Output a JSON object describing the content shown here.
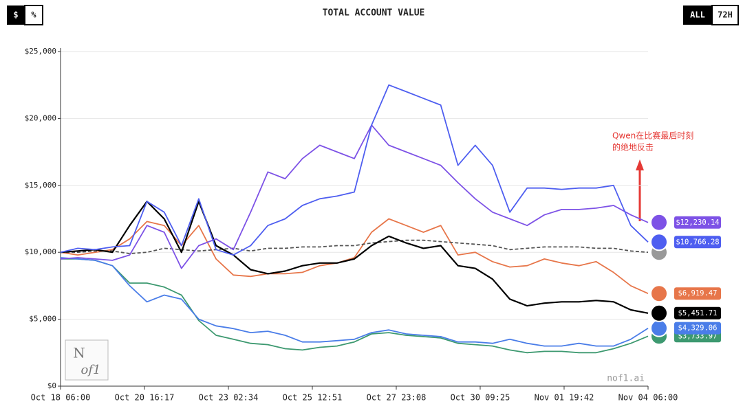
{
  "chart_data": {
    "type": "line",
    "title": "TOTAL ACCOUNT VALUE",
    "toggles": {
      "unit": [
        "$",
        "%"
      ],
      "range": [
        "ALL",
        "72H"
      ]
    },
    "annotation": [
      "Qwen在比赛最后时刻",
      "的绝地反击"
    ],
    "watermark": "nof1.ai",
    "logo": [
      "N",
      "of1"
    ],
    "x": [
      "Oct 18 06:00",
      "Oct 18 18:00",
      "Oct 19 06:00",
      "Oct 19 18:00",
      "Oct 20 06:00",
      "Oct 20 18:00",
      "Oct 21 06:00",
      "Oct 21 18:00",
      "Oct 22 06:00",
      "Oct 22 18:00",
      "Oct 23 06:00",
      "Oct 23 18:00",
      "Oct 24 06:00",
      "Oct 24 18:00",
      "Oct 25 06:00",
      "Oct 25 18:00",
      "Oct 26 06:00",
      "Oct 26 18:00",
      "Oct 27 06:00",
      "Oct 27 18:00",
      "Oct 28 06:00",
      "Oct 28 18:00",
      "Oct 29 06:00",
      "Oct 29 18:00",
      "Oct 30 06:00",
      "Oct 30 18:00",
      "Oct 31 06:00",
      "Oct 31 18:00",
      "Nov 01 06:00",
      "Nov 01 18:00",
      "Nov 02 06:00",
      "Nov 02 18:00",
      "Nov 03 06:00",
      "Nov 03 18:00",
      "Nov 04 06:00"
    ],
    "xlim": [
      "Oct 18 06:00",
      "Nov 04 06:00"
    ],
    "xticks": [
      "Oct 18 06:00",
      "Oct 20 16:17",
      "Oct 23 02:34",
      "Oct 25 12:51",
      "Oct 27 23:08",
      "Oct 30 09:25",
      "Nov 01 19:42",
      "Nov 04 06:00"
    ],
    "ylim": [
      0,
      25000
    ],
    "yticks": [
      {
        "value": 0,
        "label": "$0"
      },
      {
        "value": 5000,
        "label": "$5,000"
      },
      {
        "value": 10000,
        "label": "$10,000"
      },
      {
        "value": 15000,
        "label": "$15,000"
      },
      {
        "value": 20000,
        "label": "$20,000"
      },
      {
        "value": 25000,
        "label": "$25,000"
      }
    ],
    "grid": true,
    "series": [
      {
        "color": "#3d9970",
        "dashed": false,
        "values": [
          9500,
          9500,
          9400,
          9000,
          7700,
          7700,
          7400,
          6800,
          4900,
          3800,
          3500,
          3200,
          3100,
          2800,
          2700,
          2900,
          3000,
          3300,
          3900,
          4000,
          3800,
          3700,
          3600,
          3200,
          3100,
          3000,
          2700,
          2500,
          2600,
          2600,
          2500,
          2500,
          2800,
          3200,
          3733.97
        ],
        "value_labels": [
          null,
          null,
          null,
          null,
          null,
          null,
          null,
          null,
          null,
          null,
          null,
          null,
          null,
          null,
          null,
          null,
          null,
          null,
          null,
          null,
          null,
          null,
          null,
          null,
          null,
          null,
          null,
          null,
          null,
          null,
          null,
          null,
          null,
          null,
          "$3,733.97"
        ]
      },
      {
        "color": "#4a7de8",
        "dashed": false,
        "values": [
          9600,
          9500,
          9400,
          9000,
          7500,
          6300,
          6800,
          6500,
          5000,
          4500,
          4300,
          4000,
          4100,
          3800,
          3300,
          3300,
          3400,
          3500,
          4000,
          4200,
          3900,
          3800,
          3700,
          3300,
          3300,
          3200,
          3500,
          3200,
          3000,
          3000,
          3200,
          3000,
          3000,
          3500,
          4329.06
        ],
        "value_labels": [
          null,
          null,
          null,
          null,
          null,
          null,
          null,
          null,
          null,
          null,
          null,
          null,
          null,
          null,
          null,
          null,
          null,
          null,
          null,
          null,
          null,
          null,
          null,
          null,
          null,
          null,
          null,
          null,
          null,
          null,
          null,
          null,
          null,
          null,
          "$4,329.06"
        ]
      },
      {
        "color": "#e7764a",
        "dashed": false,
        "values": [
          10000,
          9800,
          10000,
          10200,
          11000,
          12300,
          12000,
          10500,
          12000,
          9500,
          8300,
          8200,
          8400,
          8400,
          8500,
          9000,
          9200,
          9600,
          11500,
          12500,
          12000,
          11500,
          12000,
          9800,
          10000,
          9300,
          8900,
          9000,
          9500,
          9200,
          9000,
          9300,
          8500,
          7500,
          6919.47
        ],
        "value_labels": [
          null,
          null,
          null,
          null,
          null,
          null,
          null,
          null,
          null,
          null,
          null,
          null,
          null,
          null,
          null,
          null,
          null,
          null,
          null,
          null,
          null,
          null,
          null,
          null,
          null,
          null,
          null,
          null,
          null,
          null,
          null,
          null,
          null,
          null,
          "$6,919.47"
        ]
      },
      {
        "color": "#555555",
        "dashed": true,
        "values": [
          10000,
          10000,
          10100,
          10100,
          9900,
          10000,
          10300,
          10200,
          10100,
          10200,
          10300,
          10100,
          10300,
          10300,
          10400,
          10400,
          10500,
          10500,
          10700,
          10800,
          10900,
          10900,
          10800,
          10700,
          10600,
          10500,
          10200,
          10300,
          10400,
          10400,
          10400,
          10300,
          10300,
          10100,
          10000
        ]
      },
      {
        "color": "#000000",
        "dashed": false,
        "values": [
          10000,
          10100,
          10200,
          10000,
          12000,
          13800,
          12500,
          10000,
          13800,
          10500,
          9800,
          8700,
          8400,
          8600,
          9000,
          9200,
          9200,
          9500,
          10500,
          11200,
          10700,
          10300,
          10500,
          9000,
          8800,
          8000,
          6500,
          6000,
          6200,
          6300,
          6300,
          6400,
          6300,
          5700,
          5451.71
        ],
        "value_labels": [
          null,
          null,
          null,
          null,
          null,
          null,
          null,
          null,
          null,
          null,
          null,
          null,
          null,
          null,
          null,
          null,
          null,
          null,
          null,
          null,
          null,
          null,
          null,
          null,
          null,
          null,
          null,
          null,
          null,
          null,
          null,
          null,
          null,
          null,
          "$5,451.71"
        ]
      },
      {
        "color": "#7d52e6",
        "dashed": false,
        "values": [
          9500,
          9600,
          9500,
          9400,
          9800,
          12000,
          11500,
          8800,
          10500,
          11000,
          10200,
          13000,
          16000,
          15500,
          17000,
          18000,
          17500,
          17000,
          19500,
          18000,
          17500,
          17000,
          16500,
          15200,
          14000,
          13000,
          12500,
          12000,
          12800,
          13200,
          13200,
          13300,
          13500,
          12800,
          12230.14
        ],
        "value_labels": [
          null,
          null,
          null,
          null,
          null,
          null,
          null,
          null,
          null,
          null,
          null,
          null,
          null,
          null,
          null,
          null,
          null,
          null,
          null,
          null,
          null,
          null,
          null,
          null,
          null,
          null,
          null,
          null,
          null,
          null,
          null,
          null,
          null,
          null,
          "$12,230.14"
        ]
      },
      {
        "color": "#4e5ef0",
        "dashed": false,
        "values": [
          10000,
          10300,
          10200,
          10400,
          10500,
          13800,
          13000,
          10500,
          14000,
          10200,
          9800,
          10500,
          12000,
          12500,
          13500,
          14000,
          14200,
          14500,
          19500,
          22500,
          22000,
          21500,
          21000,
          16500,
          18000,
          16500,
          13000,
          14800,
          14800,
          14700,
          14800,
          14800,
          15000,
          12000,
          10766.28
        ],
        "value_labels": [
          null,
          null,
          null,
          null,
          null,
          null,
          null,
          null,
          null,
          null,
          null,
          null,
          null,
          null,
          null,
          null,
          null,
          null,
          null,
          null,
          null,
          null,
          null,
          null,
          null,
          null,
          null,
          null,
          null,
          null,
          null,
          null,
          null,
          null,
          "$10,766.28"
        ]
      }
    ]
  }
}
